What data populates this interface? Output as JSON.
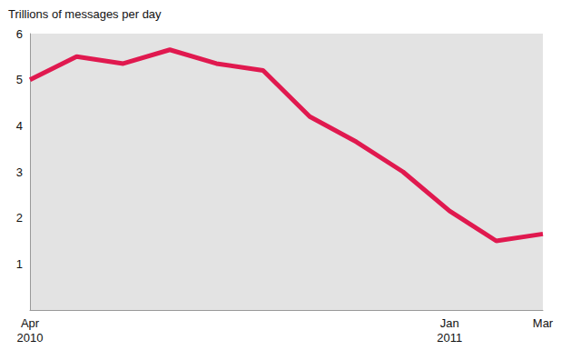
{
  "chart_data": {
    "type": "line",
    "title": "Trillions of messages per day",
    "categories": [
      "Apr\n2010",
      null,
      null,
      null,
      null,
      null,
      null,
      null,
      null,
      "Jan\n2011",
      null,
      "Mar"
    ],
    "series": [
      {
        "name": "Messages",
        "color": "#e0194f",
        "values": [
          5.0,
          5.5,
          5.35,
          5.65,
          5.35,
          5.2,
          4.2,
          3.65,
          3.0,
          2.15,
          1.5,
          1.65
        ]
      }
    ],
    "ylim": [
      0,
      6
    ],
    "yticks": [
      1,
      2,
      3,
      4,
      5,
      6
    ],
    "grid": false
  }
}
